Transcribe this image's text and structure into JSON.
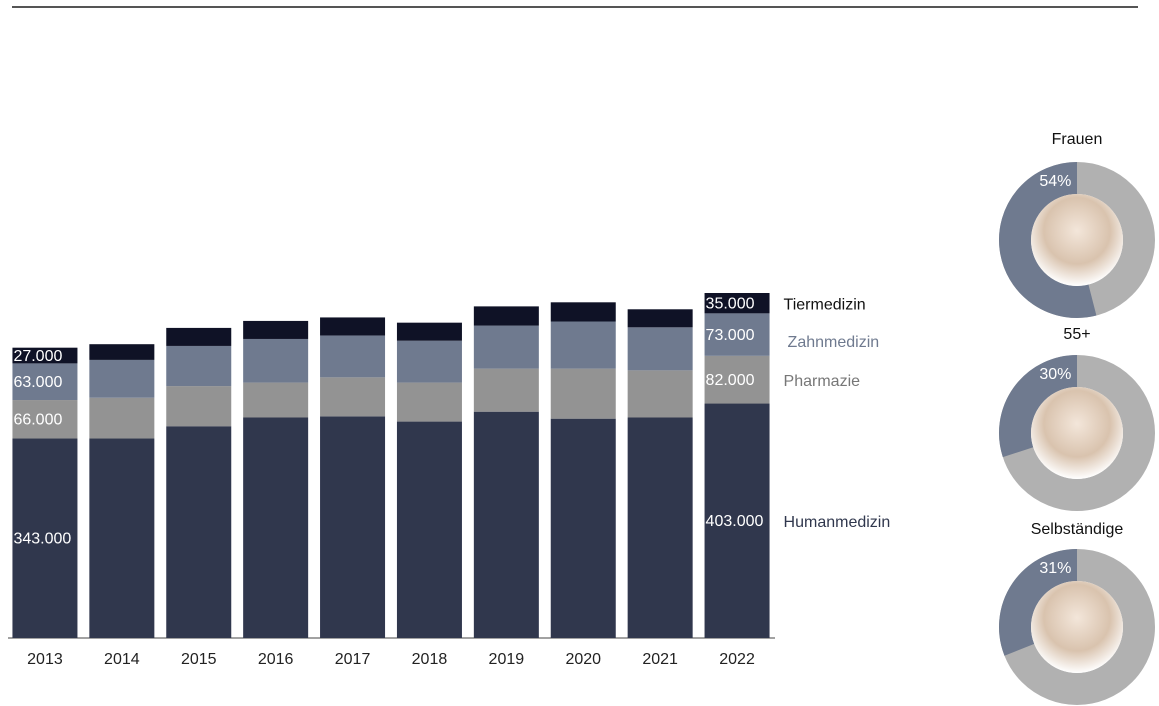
{
  "chart_data": [
    {
      "type": "bar",
      "stacked": true,
      "categories": [
        "2013",
        "2014",
        "2015",
        "2016",
        "2017",
        "2018",
        "2019",
        "2020",
        "2021",
        "2022"
      ],
      "series": [
        {
          "name": "Humanmedizin",
          "color": "#30374d",
          "values": [
            343000,
            343000,
            364000,
            379000,
            381000,
            372000,
            389000,
            377000,
            379000,
            403000
          ],
          "value_labels": [
            "343.000",
            null,
            null,
            null,
            null,
            null,
            null,
            null,
            null,
            "403.000"
          ]
        },
        {
          "name": "Pharmazie",
          "color": "#939393",
          "values": [
            66000,
            70000,
            69000,
            60000,
            67000,
            67000,
            74000,
            86000,
            81000,
            82000
          ],
          "value_labels": [
            "66.000",
            null,
            null,
            null,
            null,
            null,
            null,
            null,
            null,
            "82.000"
          ]
        },
        {
          "name": "Zahnmedizin",
          "color": "#6f7a8f",
          "values": [
            63000,
            65000,
            69000,
            75000,
            72000,
            72000,
            74000,
            81000,
            74000,
            73000
          ],
          "value_labels": [
            "63.000",
            null,
            null,
            null,
            null,
            null,
            null,
            null,
            null,
            "73.000"
          ]
        },
        {
          "name": "Tiermedizin",
          "color": "#0f1226",
          "values": [
            27000,
            27000,
            31000,
            31000,
            31000,
            31000,
            33000,
            33000,
            31000,
            35000
          ],
          "value_labels": [
            "27.000",
            null,
            null,
            null,
            null,
            null,
            null,
            null,
            null,
            "35.000"
          ]
        }
      ]
    },
    {
      "type": "donut",
      "title": "Frauen",
      "values": [
        54
      ],
      "value_labels": [
        "54%"
      ],
      "color": "#6f7a8f",
      "background_color": "#b1b1b1"
    },
    {
      "type": "donut",
      "title": "55+",
      "values": [
        30
      ],
      "value_labels": [
        "30%"
      ],
      "color": "#6f7a8f",
      "background_color": "#b1b1b1"
    },
    {
      "type": "donut",
      "title": "Selbständige",
      "values": [
        31
      ],
      "value_labels": [
        "31%"
      ],
      "color": "#6f7a8f",
      "background_color": "#b1b1b1"
    }
  ]
}
